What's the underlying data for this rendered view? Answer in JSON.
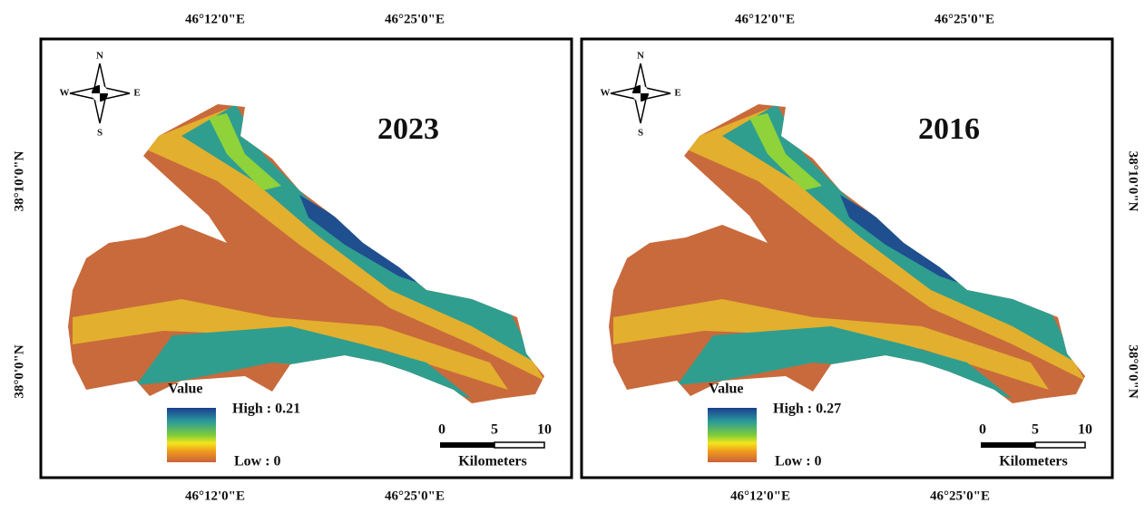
{
  "panels": [
    {
      "title": "2023",
      "top_labels": [
        "46°12'0\"E",
        "46°25'0\"E"
      ],
      "bottom_labels": [
        "46°12'0\"E",
        "46°25'0\"E"
      ],
      "side_labels": [
        "38°10'0\"N",
        "38°0'0\"N"
      ],
      "compass": {
        "n": "N",
        "s": "S",
        "e": "E",
        "w": "W"
      },
      "legend": {
        "title": "Value",
        "high": "High : 0.21",
        "low": "Low : 0"
      },
      "scale_bar": {
        "ticks": [
          "0",
          "5",
          "10"
        ],
        "unit": "Kilometers"
      }
    },
    {
      "title": "2016",
      "top_labels": [
        "46°12'0\"E",
        "46°25'0\"E"
      ],
      "bottom_labels": [
        "46°12'0\"E",
        "46°25'0\"E"
      ],
      "side_labels": [
        "38°10'0\"N",
        "38°0'0\"N"
      ],
      "compass": {
        "n": "N",
        "s": "S",
        "e": "E",
        "w": "W"
      },
      "legend": {
        "title": "Value",
        "high": "High : 0.27",
        "low": "Low : 0"
      },
      "scale_bar": {
        "ticks": [
          "0",
          "5",
          "10"
        ],
        "unit": "Kilometers"
      }
    }
  ]
}
